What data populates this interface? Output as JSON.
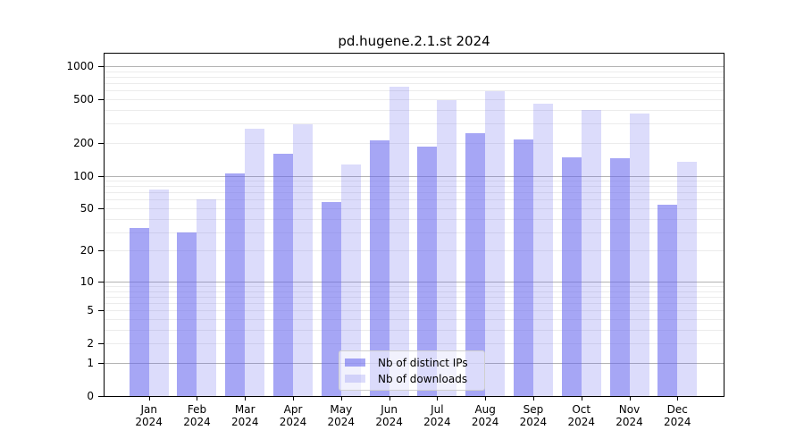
{
  "title": "pd.hugene.2.1.st 2024",
  "chart_data": {
    "type": "bar",
    "title": "pd.hugene.2.1.st 2024",
    "categories": [
      "Jan 2024",
      "Feb 2024",
      "Mar 2024",
      "Apr 2024",
      "May 2024",
      "Jun 2024",
      "Jul 2024",
      "Aug 2024",
      "Sep 2024",
      "Oct 2024",
      "Nov 2024",
      "Dec 2024"
    ],
    "series": [
      {
        "name": "Nb of distinct IPs",
        "color": "rgba(102,102,238,0.58)",
        "values": [
          33,
          30,
          104,
          160,
          57,
          212,
          184,
          246,
          216,
          147,
          145,
          54
        ]
      },
      {
        "name": "Nb of downloads",
        "color": "rgba(102,102,238,0.23)",
        "values": [
          75,
          60,
          270,
          293,
          127,
          645,
          492,
          588,
          453,
          399,
          368,
          135
        ]
      }
    ],
    "yscale": "log10(value+1)",
    "ylim": [
      0,
      1300
    ],
    "yticks": [
      0,
      1,
      2,
      5,
      10,
      20,
      50,
      100,
      200,
      500,
      1000
    ],
    "grid_major": [
      1,
      10,
      100,
      1000
    ],
    "grid_minor": [
      2,
      3,
      4,
      5,
      6,
      7,
      8,
      9,
      20,
      30,
      40,
      50,
      60,
      70,
      80,
      90,
      200,
      300,
      400,
      500,
      600,
      700,
      800,
      900
    ],
    "grid": "on",
    "legend_position": "inside-bottom-center"
  },
  "colors": {
    "bar_distinct_ips": "rgba(102,102,238,0.58)",
    "bar_downloads": "rgba(102,102,238,0.23)",
    "grid_major": "#b3b3b3",
    "grid_minor": "#ececec",
    "axis": "#000000",
    "legend_border": "#cfcfcf",
    "background": "#ffffff"
  }
}
